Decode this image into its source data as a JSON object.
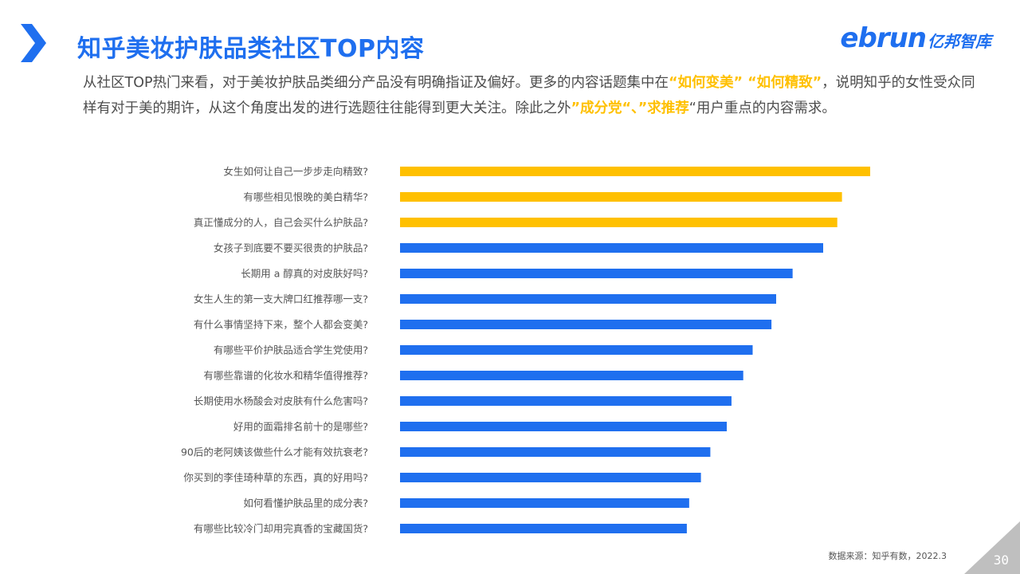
{
  "header": {
    "title": "知乎美妆护肤品类社区TOP内容",
    "logo_mark": "ebrun",
    "logo_text": "亿邦智库"
  },
  "intro": {
    "part1": "从社区TOP热门来看，对于美妆护肤品类细分产品没有明确指证及偏好。更多的内容话题集中在",
    "highlight1": "“如何变美” “如何精致”",
    "part2": "，说明知乎的女性受众同样有对于美的期许，从这个角度出发的进行选题往往能得到更大关注。除此之外",
    "highlight2": "”成分党“、”求推荐",
    "part3": "“用户重点的内容需求。"
  },
  "colors": {
    "accent_blue": "#1f6fef",
    "highlight_yellow": "#ffc000",
    "corner_gray": "#bfbfbf"
  },
  "chart_data": {
    "type": "bar",
    "orientation": "horizontal",
    "categories": [
      "女生如何让自己一步步走向精致?",
      "有哪些相见恨晚的美白精华?",
      "真正懂成分的人，自己会买什么护肤品?",
      "女孩子到底要不要买很贵的护肤品?",
      "长期用 a 醇真的对皮肤好吗?",
      "女生人生的第一支大牌口红推荐哪一支?",
      "有什么事情坚持下来，整个人都会变美?",
      "有哪些平价护肤品适合学生党使用?",
      "有哪些靠谱的化妆水和精华值得推荐?",
      "长期使用水杨酸会对皮肤有什么危害吗?",
      "好用的面霜排名前十的是哪些?",
      "90后的老阿姨该做些什么才能有效抗衰老?",
      "你买到的李佳琦种草的东西，真的好用吗?",
      "如何看懂护肤品里的成分表?",
      "有哪些比较冷门却用完真香的宝藏国货?"
    ],
    "values": [
      100,
      94,
      93,
      90,
      83.5,
      80,
      79,
      75,
      73,
      70.5,
      69.5,
      66,
      64,
      61.5,
      61
    ],
    "bar_colors": [
      "#ffc000",
      "#ffc000",
      "#ffc000",
      "#1f6fef",
      "#1f6fef",
      "#1f6fef",
      "#1f6fef",
      "#1f6fef",
      "#1f6fef",
      "#1f6fef",
      "#1f6fef",
      "#1f6fef",
      "#1f6fef",
      "#1f6fef",
      "#1f6fef"
    ],
    "title": "",
    "xlabel": "",
    "ylabel": "",
    "xlim": [
      0,
      100
    ],
    "grid": false,
    "legend": "none"
  },
  "footer": {
    "source": "数据来源：知乎有数，2022.3",
    "page_number": "30"
  }
}
